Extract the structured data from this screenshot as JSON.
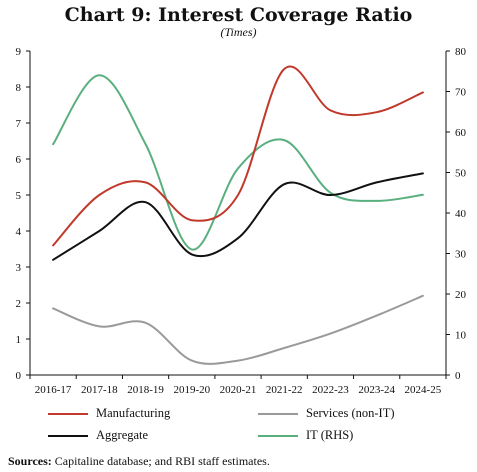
{
  "title": "Chart 9: Interest Coverage Ratio",
  "subtitle": "(Times)",
  "source": {
    "label": "Sources:",
    "text": " Capitaline database; and RBI staff estimates."
  },
  "chart_data": {
    "type": "line",
    "categories": [
      "2016-17",
      "2017-18",
      "2018-19",
      "2019-20",
      "2020-21",
      "2021-22",
      "2022-23",
      "2023-24",
      "2024-25"
    ],
    "left_axis": {
      "ylim": [
        0,
        9
      ],
      "ticks": [
        0,
        1,
        2,
        3,
        4,
        5,
        6,
        7,
        8,
        9
      ]
    },
    "right_axis": {
      "ylim": [
        0,
        80
      ],
      "ticks": [
        0,
        10,
        20,
        30,
        40,
        50,
        60,
        70,
        80
      ]
    },
    "grid": false,
    "legend_position": "bottom",
    "series": [
      {
        "name": "Manufacturing",
        "axis": "left",
        "color": "#c0392b",
        "values": [
          3.6,
          5.0,
          5.35,
          4.3,
          5.0,
          8.5,
          7.35,
          7.3,
          7.85
        ]
      },
      {
        "name": "Services (non-IT)",
        "axis": "left",
        "color": "#9a9a9a",
        "values": [
          1.85,
          1.35,
          1.45,
          0.4,
          0.4,
          0.75,
          1.15,
          1.65,
          2.2
        ]
      },
      {
        "name": "Aggregate",
        "axis": "left",
        "color": "#111111",
        "values": [
          3.2,
          4.0,
          4.8,
          3.35,
          3.8,
          5.3,
          5.0,
          5.35,
          5.6
        ]
      },
      {
        "name": "IT (RHS)",
        "axis": "right",
        "color": "#5aaf7f",
        "values": [
          57,
          74,
          57,
          31,
          51,
          58,
          45,
          43,
          44.5
        ]
      }
    ]
  }
}
